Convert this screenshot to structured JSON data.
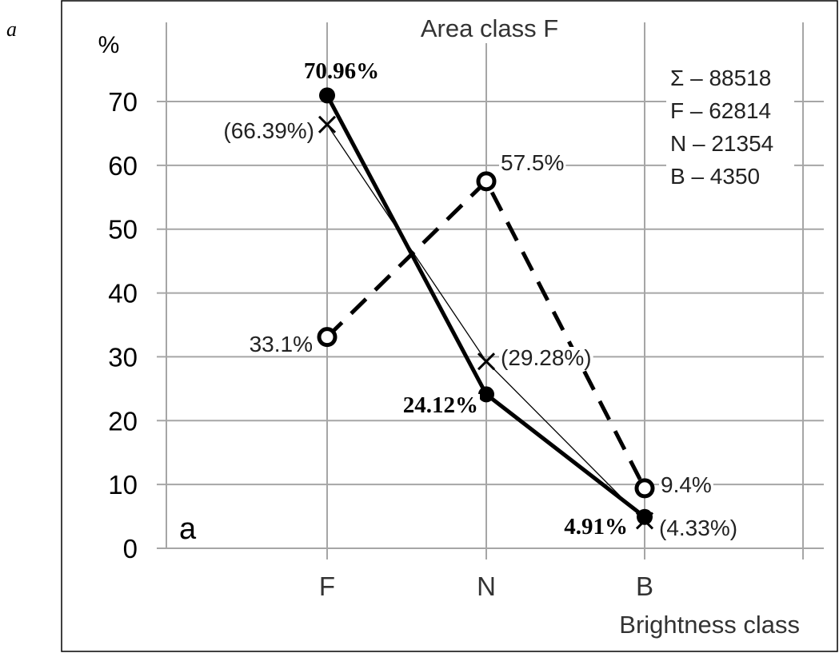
{
  "figure_label": "a",
  "chart_data": {
    "type": "line",
    "title": "Area class F",
    "ylabel": "%",
    "xlabel": "Brightness class",
    "categories": [
      "F",
      "N",
      "B"
    ],
    "ylim": [
      0,
      70
    ],
    "yticks": [
      0,
      10,
      20,
      30,
      40,
      50,
      60,
      70
    ],
    "grid": true,
    "panel_label": "a",
    "series": [
      {
        "values": [
          70.96,
          24.12,
          4.91
        ],
        "labels": [
          "70.96%",
          "24.12%",
          "4.91%"
        ],
        "style": "thick-solid",
        "marker": "filled-circle",
        "color": "#000000"
      },
      {
        "values": [
          66.39,
          29.28,
          4.33
        ],
        "labels": [
          "(66.39%)",
          "(29.28%)",
          "(4.33%)"
        ],
        "style": "thin-solid",
        "marker": "cross",
        "color": "#000000"
      },
      {
        "values": [
          33.1,
          57.5,
          9.4
        ],
        "labels": [
          "33.1%",
          "57.5%",
          "9.4%"
        ],
        "style": "dashed",
        "marker": "open-circle",
        "color": "#000000"
      }
    ],
    "annotations": [
      "Σ – 88518",
      "F – 62814",
      "N – 21354",
      "B – 4350"
    ],
    "gridline_color": "#a6a6a6"
  }
}
